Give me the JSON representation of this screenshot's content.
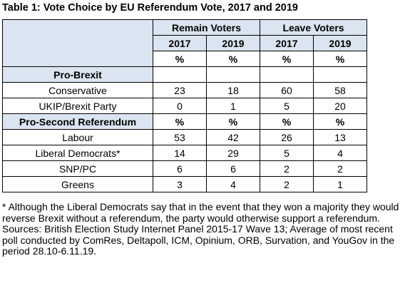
{
  "title": "Table 1: Vote Choice by EU Referendum Vote, 2017 and 2019",
  "table": {
    "groups": [
      "Remain Voters",
      "Leave Voters"
    ],
    "years": [
      "2017",
      "2019",
      "2017",
      "2019"
    ],
    "units": [
      "%",
      "%",
      "%",
      "%"
    ],
    "sections": [
      {
        "label": "Pro-Brexit",
        "units": [],
        "rows": [
          {
            "label": "Conservative",
            "values": [
              23,
              18,
              60,
              58
            ]
          },
          {
            "label": "UKIP/Brexit Party",
            "values": [
              0,
              1,
              5,
              20
            ]
          }
        ]
      },
      {
        "label": "Pro-Second Referendum",
        "units": [
          "%",
          "%",
          "%",
          "%"
        ],
        "rows": [
          {
            "label": "Labour",
            "values": [
              53,
              42,
              26,
              13
            ]
          },
          {
            "label": "Liberal Democrats*",
            "values": [
              14,
              29,
              5,
              4
            ]
          },
          {
            "label": "SNP/PC",
            "values": [
              6,
              6,
              2,
              2
            ]
          },
          {
            "label": "Greens",
            "values": [
              3,
              4,
              2,
              1
            ]
          }
        ]
      }
    ]
  },
  "notes": {
    "footnote": "* Although the Liberal Democrats say that in the event that they won a majority they would reverse Brexit without a referendum, the party would otherwise support a referendum.",
    "sources": "Sources: British Election Study Internet Panel 2015-17 Wave 13; Average of most recent poll conducted by ComRes, Deltapoll, ICM, Opinium, ORB, Survation, and YouGov in the period 28.10-6.11.19."
  }
}
